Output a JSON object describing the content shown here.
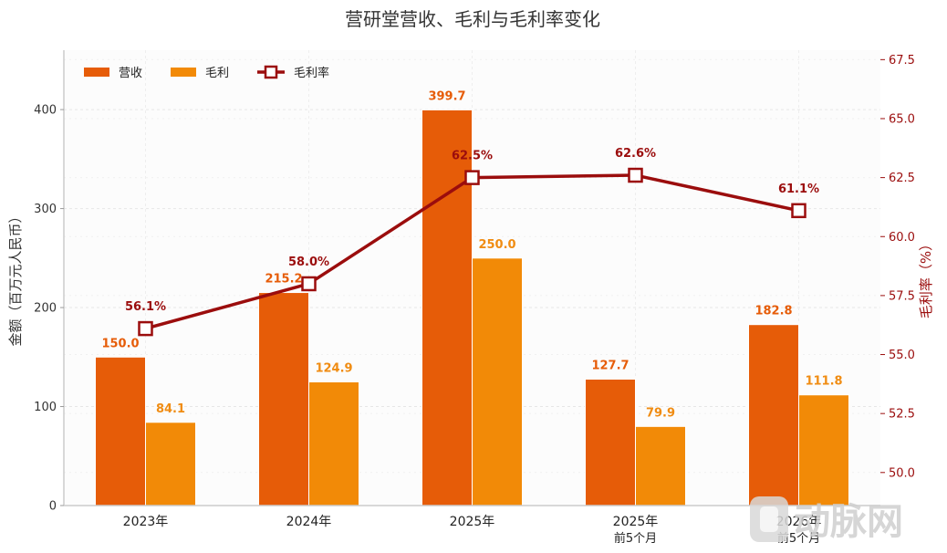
{
  "chart_data": {
    "type": "bar",
    "title": "营研堂营收、毛利与毛利率变化",
    "categories": [
      {
        "label": "2023年",
        "sublabel": ""
      },
      {
        "label": "2024年",
        "sublabel": ""
      },
      {
        "label": "2025年",
        "sublabel": ""
      },
      {
        "label": "2025年",
        "sublabel": "前5个月"
      },
      {
        "label": "2026年",
        "sublabel": "前5个月"
      }
    ],
    "series": [
      {
        "name": "营收",
        "kind": "bar",
        "axis": "left",
        "color": "#e65c08",
        "label_color": "#e65c08",
        "values": [
          150.0,
          215.2,
          399.7,
          127.7,
          182.8
        ],
        "labels": [
          "150.0",
          "215.2",
          "399.7",
          "127.7",
          "182.8"
        ]
      },
      {
        "name": "毛利",
        "kind": "bar",
        "axis": "left",
        "color": "#f28a07",
        "label_color": "#f08c12",
        "values": [
          84.1,
          124.9,
          250.0,
          79.9,
          111.8
        ],
        "labels": [
          "84.1",
          "124.9",
          "250.0",
          "79.9",
          "111.8"
        ]
      },
      {
        "name": "毛利率",
        "kind": "line",
        "axis": "right",
        "color": "#9b0d0d",
        "values": [
          56.1,
          58.0,
          62.5,
          62.6,
          61.1
        ],
        "labels": [
          "56.1%",
          "58.0%",
          "62.5%",
          "62.6%",
          "61.1%"
        ]
      }
    ],
    "ylabel": "金额（百万元人民币）",
    "y2label": "毛利率（%）",
    "ylim": [
      0,
      460
    ],
    "yticks": [
      0,
      100,
      200,
      300,
      400
    ],
    "y2lim": [
      48.6,
      67.9
    ],
    "y2ticks": [
      50.0,
      52.5,
      55.0,
      57.5,
      60.0,
      62.5,
      65.0,
      67.5
    ],
    "y2tick_labels": [
      "50.0",
      "52.5",
      "55.0",
      "57.5",
      "60.0",
      "62.5",
      "65.0",
      "67.5"
    ],
    "grid": true,
    "legend_position": "top-left"
  },
  "watermark": {
    "text": "动脉网"
  }
}
